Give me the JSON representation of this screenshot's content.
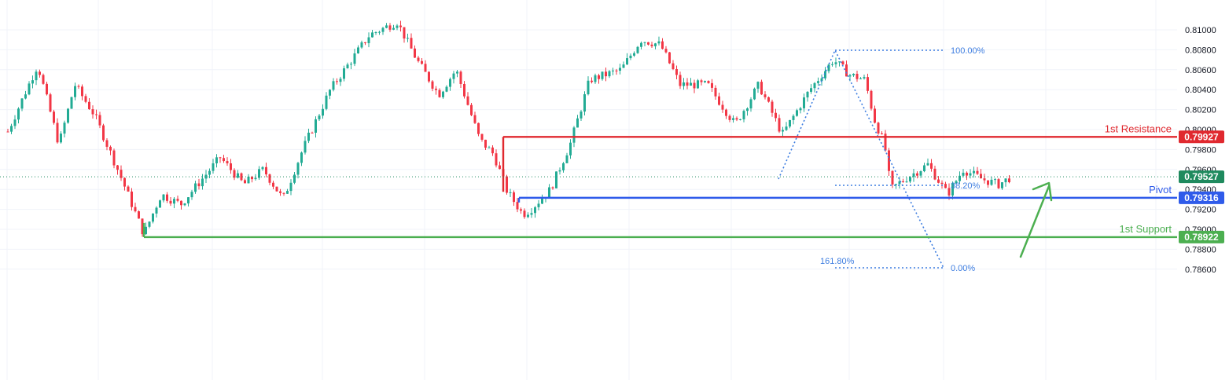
{
  "chart_data": {
    "type": "candlestick",
    "y_axis": {
      "ticks": [
        "0.81000",
        "0.80800",
        "0.80600",
        "0.80400",
        "0.80200",
        "0.80000",
        "0.79800",
        "0.79600",
        "0.79400",
        "0.79200",
        "0.79000",
        "0.78800",
        "0.78600"
      ],
      "range": [
        0.7848,
        0.8115
      ]
    },
    "levels": [
      {
        "key": "resistance",
        "label": "1st Resistance",
        "value": 0.79927,
        "value_text": "0.79927",
        "color": "#e0292f"
      },
      {
        "key": "pivot",
        "label": "Pivot",
        "value": 0.79316,
        "value_text": "0.79316",
        "color": "#2f5bea"
      },
      {
        "key": "support",
        "label": "1st Support",
        "value": 0.78922,
        "value_text": "0.78922",
        "color": "#4caf50"
      }
    ],
    "current_price": {
      "value": 0.79527,
      "value_text": "0.79527",
      "color": "#1f8a5e"
    },
    "fibonacci": {
      "labels": [
        "100.00%",
        "38.20%",
        "161.80%",
        "0.00%"
      ],
      "color": "#3d7de0"
    },
    "candle_colors": {
      "up": "#22ab94",
      "down": "#f23645"
    },
    "grid": true,
    "projection_arrow": {
      "color": "#4caf50",
      "direction": "up"
    }
  }
}
